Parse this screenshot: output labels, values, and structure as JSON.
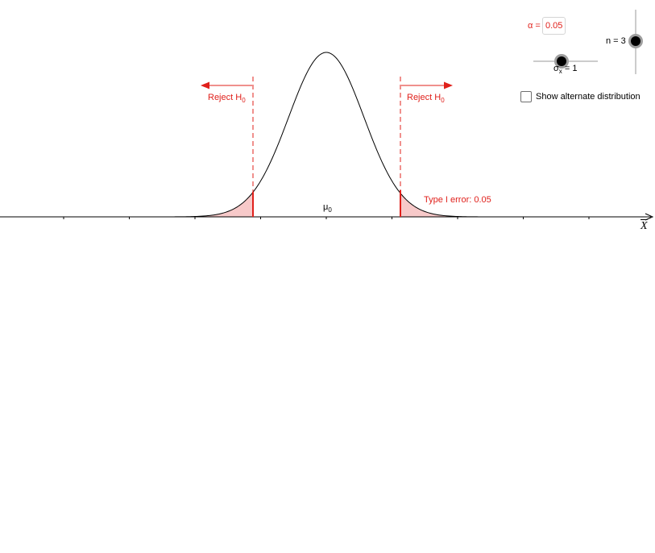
{
  "controls": {
    "alpha_label": "α =",
    "alpha_value": "0.05",
    "n_label": "n = 3",
    "sigma_symbol": "σ",
    "sigma_sub": "x",
    "sigma_rest": "= 1",
    "alt_checkbox_label": "Show alternate distribution",
    "alt_checked": false
  },
  "labels": {
    "reject_left": "Reject H",
    "reject_right": "Reject H",
    "reject_sub": "0",
    "mu_symbol": "μ",
    "mu_sub": "0",
    "type1": "Type I error: 0.05",
    "axis_var": "X"
  },
  "colors": {
    "critical": "#e0201b",
    "curve": "#000000",
    "shade": "#f7c9c9"
  }
}
